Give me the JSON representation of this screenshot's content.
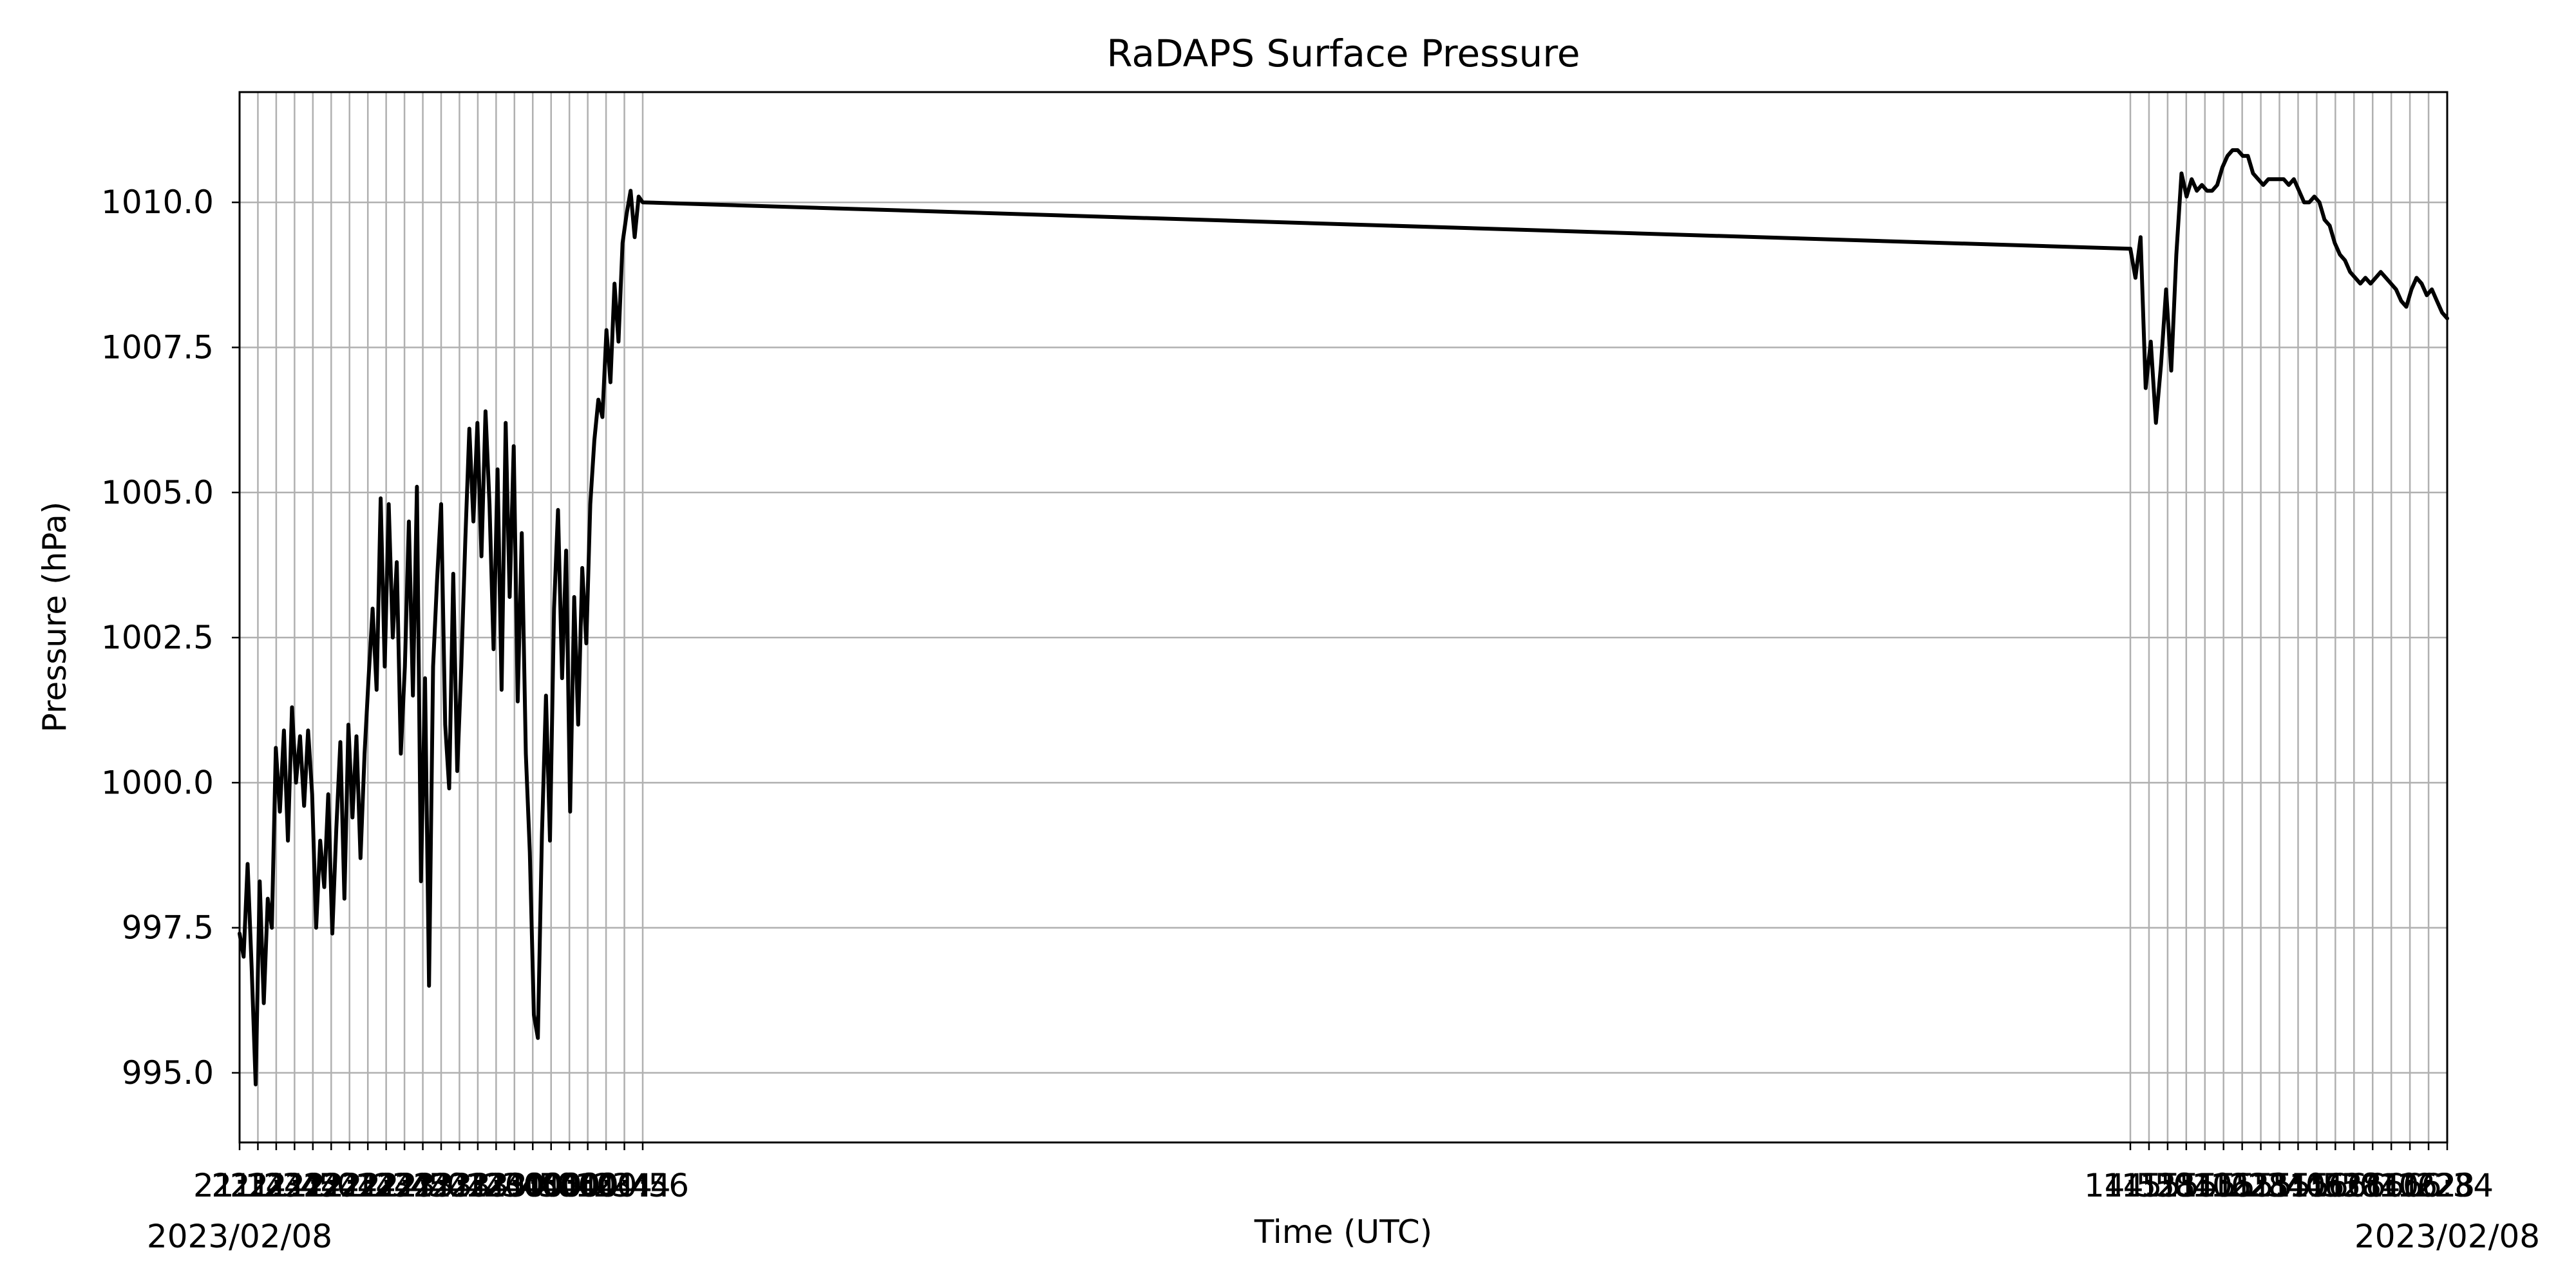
{
  "chart_data": {
    "type": "line",
    "title": "RaDAPS Surface Pressure",
    "xlabel": "Time (UTC)",
    "ylabel": "Pressure (hPa)",
    "date_left": "2023/02/08",
    "date_right": "2023/02/08",
    "grid": true,
    "legend": "none",
    "ylim": [
      993.8,
      1011.9
    ],
    "yticks": [
      995.0,
      997.5,
      1000.0,
      1002.5,
      1005.0,
      1007.5,
      1010.0
    ],
    "ytick_labels": [
      "995.0",
      "997.5",
      "1000.0",
      "1002.5",
      "1005.0",
      "1007.5",
      "1010.0"
    ],
    "x_axis": {
      "left_ticks": [
        "21:14",
        "21:24",
        "21:34",
        "21:44",
        "21:54",
        "22:04",
        "22:14",
        "22:24",
        "22:34",
        "22:44",
        "22:54",
        "23:04",
        "23:14",
        "23:24",
        "23:34",
        "23:44",
        "23:54",
        "00:04",
        "00:14",
        "00:24",
        "00:34",
        "00:44",
        "00:56"
      ],
      "right_ticks": [
        "14:52",
        "14:58",
        "15:04",
        "15:10",
        "15:16",
        "15:22",
        "15:28",
        "15:34",
        "15:40",
        "15:46",
        "15:52",
        "15:58",
        "16:04",
        "16:10",
        "16:16",
        "16:22",
        "16:28",
        "16:34"
      ]
    },
    "series": [
      {
        "color": "#000000",
        "segments": [
          {
            "t_start": "21:14",
            "t_end": "00:56",
            "values": [
              997.4,
              997.0,
              998.6,
              996.8,
              994.8,
              998.3,
              996.2,
              998.0,
              997.5,
              1000.6,
              999.5,
              1000.9,
              999.0,
              1001.3,
              1000.0,
              1000.8,
              999.6,
              1000.9,
              999.8,
              997.5,
              999.0,
              998.2,
              999.8,
              997.4,
              999.2,
              1000.7,
              998.0,
              1001.0,
              999.4,
              1000.8,
              998.7,
              1000.5,
              1001.8,
              1003.0,
              1001.6,
              1004.9,
              1002.0,
              1004.8,
              1002.5,
              1003.8,
              1000.5,
              1002.0,
              1004.5,
              1001.5,
              1005.1,
              998.3,
              1001.8,
              996.5,
              1002.0,
              1003.5,
              1004.8,
              1001.0,
              999.9,
              1003.6,
              1000.2,
              1002.0,
              1004.2,
              1006.1,
              1004.5,
              1006.2,
              1003.9,
              1006.4,
              1004.8,
              1002.3,
              1005.4,
              1001.6,
              1006.2,
              1003.2,
              1005.8,
              1001.4,
              1004.3,
              1000.5,
              998.8,
              996.0,
              995.6,
              999.1,
              1001.5,
              999.0,
              1003.0,
              1004.7,
              1001.8,
              1004.0,
              999.5,
              1003.2,
              1001.0,
              1003.7,
              1002.4,
              1004.8,
              1005.9,
              1006.6,
              1006.3,
              1007.8,
              1006.9,
              1008.6,
              1007.6,
              1009.3,
              1009.8,
              1010.2,
              1009.4,
              1010.1,
              1010.0
            ]
          },
          {
            "t_start": "14:52",
            "t_end": "16:34",
            "values": [
              1009.2,
              1008.7,
              1009.4,
              1006.8,
              1007.6,
              1006.2,
              1007.2,
              1008.5,
              1007.1,
              1009.1,
              1010.5,
              1010.1,
              1010.4,
              1010.2,
              1010.3,
              1010.2,
              1010.2,
              1010.3,
              1010.6,
              1010.8,
              1010.9,
              1010.9,
              1010.8,
              1010.8,
              1010.5,
              1010.4,
              1010.3,
              1010.4,
              1010.4,
              1010.4,
              1010.4,
              1010.3,
              1010.4,
              1010.2,
              1010.0,
              1010.0,
              1010.1,
              1010.0,
              1009.7,
              1009.6,
              1009.3,
              1009.1,
              1009.0,
              1008.8,
              1008.7,
              1008.6,
              1008.7,
              1008.6,
              1008.7,
              1008.8,
              1008.7,
              1008.6,
              1008.5,
              1008.3,
              1008.2,
              1008.5,
              1008.7,
              1008.6,
              1008.4,
              1008.5,
              1008.3,
              1008.1,
              1008.0
            ]
          }
        ]
      }
    ]
  }
}
